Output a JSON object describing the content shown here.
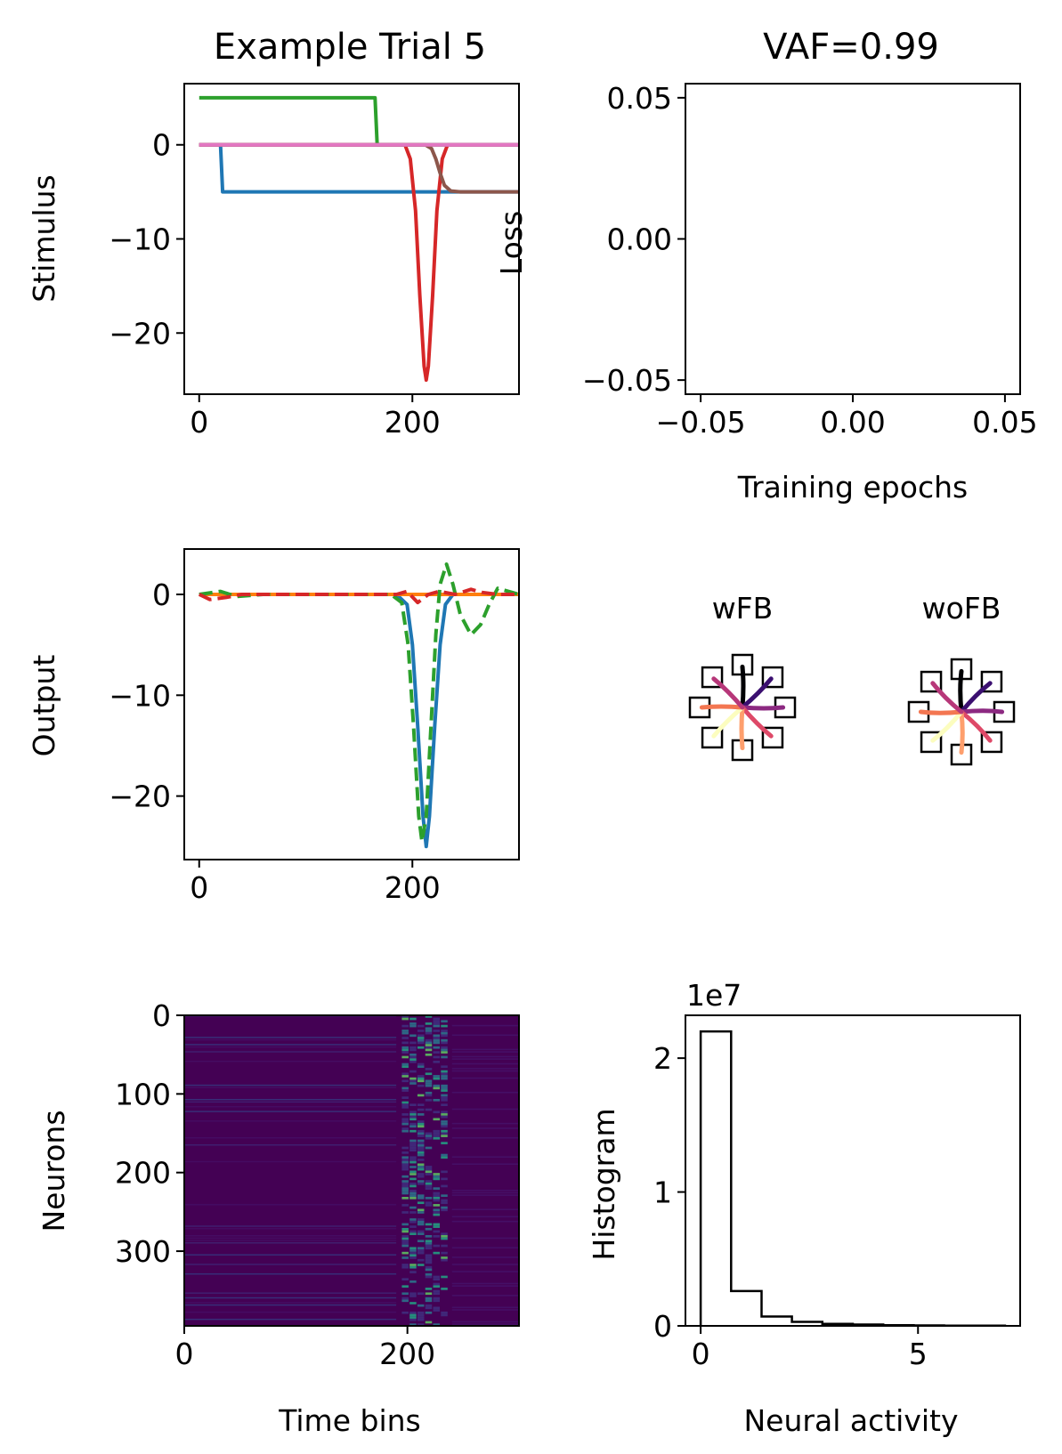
{
  "chart_data": [
    {
      "type": "line",
      "title": "Example Trial 5",
      "xlabel": "",
      "ylabel": "Stimulus",
      "xlim": [
        -14,
        300
      ],
      "ylim": [
        -26.5,
        6.5
      ],
      "xticks": [
        0,
        200
      ],
      "yticks": [
        0,
        -10,
        -20
      ],
      "grid": false,
      "series": [
        {
          "color": "#1f77b4",
          "points": [
            [
              0,
              0
            ],
            [
              20,
              0
            ],
            [
              22,
              -5
            ],
            [
              300,
              -5
            ]
          ]
        },
        {
          "color": "#ff7f0e",
          "points": [
            [
              0,
              0
            ],
            [
              300,
              0
            ]
          ]
        },
        {
          "color": "#2ca02c",
          "points": [
            [
              0,
              5
            ],
            [
              165,
              5
            ],
            [
              167,
              0
            ],
            [
              300,
              0
            ]
          ]
        },
        {
          "color": "#d62728",
          "points": [
            [
              0,
              0
            ],
            [
              193,
              0
            ],
            [
              198,
              -1.5
            ],
            [
              203,
              -7
            ],
            [
              207,
              -16
            ],
            [
              211,
              -23.5
            ],
            [
              213,
              -25
            ],
            [
              215,
              -23.5
            ],
            [
              219,
              -16
            ],
            [
              223,
              -7
            ],
            [
              228,
              -1.5
            ],
            [
              233,
              0
            ],
            [
              300,
              0
            ]
          ]
        },
        {
          "color": "#9467bd",
          "points": [
            [
              0,
              0
            ],
            [
              300,
              0
            ]
          ]
        },
        {
          "color": "#8c564b",
          "points": [
            [
              0,
              0
            ],
            [
              212,
              0
            ],
            [
              218,
              -0.4
            ],
            [
              222,
              -1.5
            ],
            [
              226,
              -3
            ],
            [
              230,
              -4.3
            ],
            [
              236,
              -4.9
            ],
            [
              245,
              -5
            ],
            [
              300,
              -5
            ]
          ]
        },
        {
          "color": "#e377c2",
          "points": [
            [
              0,
              0
            ],
            [
              300,
              0
            ]
          ]
        }
      ]
    },
    {
      "type": "line",
      "title": "VAF=0.99",
      "xlabel": "Training epochs",
      "ylabel": "Loss",
      "xlim": [
        -0.055,
        0.055
      ],
      "ylim": [
        -0.055,
        0.055
      ],
      "xticks": [
        "−0.05",
        "0.00",
        "0.05"
      ],
      "yticks": [
        "0.05",
        "0.00",
        "−0.05"
      ],
      "grid": false,
      "series": []
    },
    {
      "type": "line",
      "title": "",
      "xlabel": "",
      "ylabel": "Output",
      "xlim": [
        -14,
        300
      ],
      "ylim": [
        -26.3,
        4.5
      ],
      "xticks": [
        0,
        200
      ],
      "yticks": [
        0,
        -10,
        -20
      ],
      "grid": false,
      "series": [
        {
          "color": "#1f77b4",
          "style": "solid",
          "points": [
            [
              0,
              0
            ],
            [
              185,
              0
            ],
            [
              195,
              -1
            ],
            [
              200,
              -5
            ],
            [
              205,
              -13
            ],
            [
              210,
              -22
            ],
            [
              213,
              -25
            ],
            [
              216,
              -22
            ],
            [
              221,
              -13
            ],
            [
              226,
              -5
            ],
            [
              231,
              -1
            ],
            [
              238,
              0
            ],
            [
              300,
              0
            ]
          ]
        },
        {
          "color": "#ff7f0e",
          "style": "solid",
          "points": [
            [
              0,
              0
            ],
            [
              300,
              0
            ]
          ]
        },
        {
          "color": "#2ca02c",
          "style": "dashed",
          "points": [
            [
              0,
              0
            ],
            [
              20,
              0.3
            ],
            [
              35,
              -0.2
            ],
            [
              60,
              0
            ],
            [
              180,
              0
            ],
            [
              190,
              -0.8
            ],
            [
              196,
              -5
            ],
            [
              201,
              -13
            ],
            [
              206,
              -22
            ],
            [
              209,
              -24.5
            ],
            [
              213,
              -22
            ],
            [
              218,
              -12
            ],
            [
              222,
              -4
            ],
            [
              226,
              1
            ],
            [
              232,
              3
            ],
            [
              238,
              1
            ],
            [
              245,
              -2
            ],
            [
              255,
              -4
            ],
            [
              264,
              -3
            ],
            [
              272,
              -1
            ],
            [
              280,
              0.6
            ],
            [
              290,
              0.3
            ],
            [
              300,
              0
            ]
          ]
        },
        {
          "color": "#d62728",
          "style": "dashed",
          "points": [
            [
              0,
              0
            ],
            [
              10,
              -0.5
            ],
            [
              25,
              -0.3
            ],
            [
              40,
              0
            ],
            [
              185,
              0
            ],
            [
              195,
              0.3
            ],
            [
              205,
              -0.8
            ],
            [
              215,
              0
            ],
            [
              225,
              0.3
            ],
            [
              240,
              0
            ],
            [
              255,
              0.5
            ],
            [
              265,
              0.2
            ],
            [
              280,
              0
            ],
            [
              300,
              0
            ]
          ]
        }
      ]
    },
    {
      "type": "heatmap",
      "title": "",
      "xlabel": "Time bins",
      "ylabel": "Neurons",
      "xlim": [
        0,
        300
      ],
      "ylim": [
        395,
        0
      ],
      "xticks": [
        0,
        200
      ],
      "yticks": [
        0,
        100,
        200,
        300
      ],
      "rows": 395,
      "cols": 300,
      "colormap": "viridis",
      "note_values": "mostly low activity (dark purple) with scattered horizontal streaks; activity burst around time bins 195-235"
    },
    {
      "type": "bar",
      "title": "",
      "offset_label": "1e7",
      "xlabel": "Neural activity",
      "ylabel": "Histogram",
      "xlim": [
        -0.35,
        7.35
      ],
      "ylim": [
        0,
        2.32
      ],
      "xticks": [
        0,
        5
      ],
      "yticks": [
        0,
        1,
        2
      ],
      "histtype": "step",
      "bin_edges": [
        0,
        0.7,
        1.4,
        2.1,
        2.8,
        3.5,
        4.2,
        4.9,
        5.6,
        6.3,
        7.0
      ],
      "counts": [
        2.2,
        0.26,
        0.07,
        0.03,
        0.015,
        0.01,
        0.005,
        0.003,
        0.002,
        0.001
      ]
    },
    {
      "type": "line",
      "title": "",
      "xlabel": "",
      "ylabel": "",
      "panels": [
        "wFB",
        "woFB"
      ],
      "targets": 8,
      "trajectory_colors": [
        "#000004",
        "#3b0f70",
        "#8c2981",
        "#de4968",
        "#fe9f6d",
        "#fcfdbf",
        "#f37651",
        "#b73779"
      ]
    }
  ]
}
